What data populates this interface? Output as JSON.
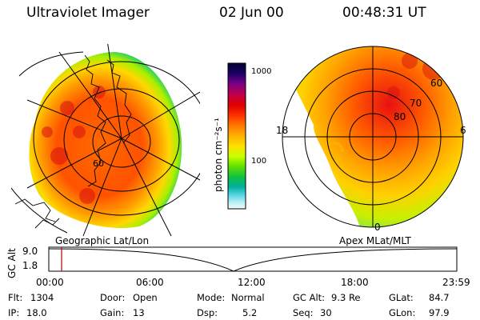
{
  "header": {
    "instrument": "Ultraviolet Imager",
    "date": "02 Jun 00",
    "time": "00:48:31 UT"
  },
  "colorbar": {
    "unit_label": "photon cm⁻²s⁻¹",
    "tick_high": "1000",
    "tick_mid": "100",
    "colors": [
      "#000033",
      "#1a0066",
      "#7a0088",
      "#c20044",
      "#e00000",
      "#ff3300",
      "#ff7a00",
      "#ffb000",
      "#ffe000",
      "#c8ff00",
      "#60e000",
      "#10c040",
      "#00b0a0",
      "#60d8e8",
      "#bff0f5",
      "#f2fbfb"
    ]
  },
  "left_panel": {
    "caption": "Geographic Lat/Lon",
    "label_lat": "60"
  },
  "right_panel": {
    "caption": "Apex MLat/MLT",
    "label_60": "60",
    "label_70": "70",
    "label_80": "80",
    "label_mlt_left": "18",
    "label_mlt_right": "6",
    "label_mlt_bottom": "0"
  },
  "altitude_plot": {
    "y_label": "GC Alt",
    "y_top": "9.0",
    "y_bottom": "1.8",
    "x_ticks": [
      "00:00",
      "06:00",
      "12:00",
      "18:00",
      "23:59"
    ]
  },
  "status": {
    "flt_label": "Flt:",
    "flt_value": "1304",
    "ip_label": "IP:",
    "ip_value": "18.0",
    "door_label": "Door:",
    "door_value": "Open",
    "gain_label": "Gain:",
    "gain_value": "13",
    "mode_label": "Mode:",
    "mode_value": "Normal",
    "dsp_label": "Dsp:",
    "dsp_value": "5.2",
    "gcalt_label": "GC Alt:",
    "gcalt_value": "9.3 Re",
    "seq_label": "Seq:",
    "seq_value": "30",
    "glat_label": "GLat:",
    "glat_value": "84.7",
    "glon_label": "GLon:",
    "glon_value": "97.9"
  }
}
